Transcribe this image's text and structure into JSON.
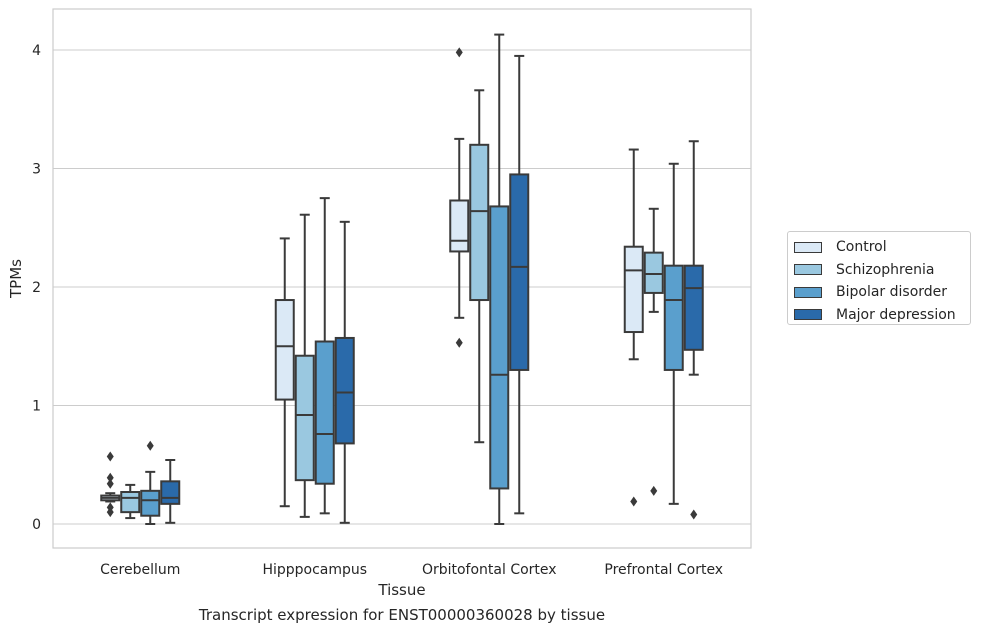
{
  "chart_data": {
    "type": "box",
    "ylabel": "TPMs",
    "xlabel": "Tissue",
    "ylim": [
      -0.2,
      4.35
    ],
    "yticks": [
      0,
      1,
      2,
      3,
      4
    ],
    "grid": "horizontal",
    "legend_position": "right",
    "categories": [
      "Cerebellum",
      "Hipppocampus",
      "Orbitofontal Cortex",
      "Prefrontal Cortex"
    ],
    "series": [
      {
        "name": "Control",
        "color": "#dbe9f6",
        "boxes": [
          {
            "whisker_low": 0.19,
            "q1": 0.2,
            "median": 0.22,
            "q3": 0.24,
            "whisker_high": 0.26,
            "outliers": [
              0.57,
              0.39,
              0.34,
              0.14,
              0.1
            ]
          },
          {
            "whisker_low": 0.15,
            "q1": 1.05,
            "median": 1.5,
            "q3": 1.89,
            "whisker_high": 2.41,
            "outliers": []
          },
          {
            "whisker_low": 1.74,
            "q1": 2.3,
            "median": 2.39,
            "q3": 2.73,
            "whisker_high": 3.25,
            "outliers": [
              3.98,
              1.53
            ]
          },
          {
            "whisker_low": 1.39,
            "q1": 1.62,
            "median": 2.14,
            "q3": 2.34,
            "whisker_high": 3.16,
            "outliers": [
              0.19
            ]
          }
        ]
      },
      {
        "name": "Schizophrenia",
        "color": "#9ac8e0",
        "boxes": [
          {
            "whisker_low": 0.05,
            "q1": 0.1,
            "median": 0.22,
            "q3": 0.27,
            "whisker_high": 0.33,
            "outliers": []
          },
          {
            "whisker_low": 0.06,
            "q1": 0.37,
            "median": 0.92,
            "q3": 1.42,
            "whisker_high": 2.61,
            "outliers": []
          },
          {
            "whisker_low": 0.69,
            "q1": 1.89,
            "median": 2.64,
            "q3": 3.2,
            "whisker_high": 3.66,
            "outliers": []
          },
          {
            "whisker_low": 1.79,
            "q1": 1.95,
            "median": 2.11,
            "q3": 2.29,
            "whisker_high": 2.66,
            "outliers": [
              0.28
            ]
          }
        ]
      },
      {
        "name": "Bipolar disorder",
        "color": "#5a9fcd",
        "boxes": [
          {
            "whisker_low": 0.0,
            "q1": 0.07,
            "median": 0.2,
            "q3": 0.28,
            "whisker_high": 0.44,
            "outliers": [
              0.66
            ]
          },
          {
            "whisker_low": 0.09,
            "q1": 0.34,
            "median": 0.76,
            "q3": 1.54,
            "whisker_high": 2.75,
            "outliers": []
          },
          {
            "whisker_low": 0.0,
            "q1": 0.3,
            "median": 1.26,
            "q3": 2.68,
            "whisker_high": 4.13,
            "outliers": []
          },
          {
            "whisker_low": 0.17,
            "q1": 1.3,
            "median": 1.89,
            "q3": 2.18,
            "whisker_high": 3.04,
            "outliers": []
          }
        ]
      },
      {
        "name": "Major depression",
        "color": "#2a6aaa",
        "boxes": [
          {
            "whisker_low": 0.01,
            "q1": 0.17,
            "median": 0.22,
            "q3": 0.36,
            "whisker_high": 0.54,
            "outliers": []
          },
          {
            "whisker_low": 0.01,
            "q1": 0.68,
            "median": 1.11,
            "q3": 1.57,
            "whisker_high": 2.55,
            "outliers": []
          },
          {
            "whisker_low": 0.09,
            "q1": 1.3,
            "median": 2.17,
            "q3": 2.95,
            "whisker_high": 3.95,
            "outliers": []
          },
          {
            "whisker_low": 1.26,
            "q1": 1.47,
            "median": 1.99,
            "q3": 2.18,
            "whisker_high": 3.23,
            "outliers": [
              0.08
            ]
          }
        ]
      }
    ]
  },
  "caption": "Transcript expression for ENST00000360028 by tissue"
}
